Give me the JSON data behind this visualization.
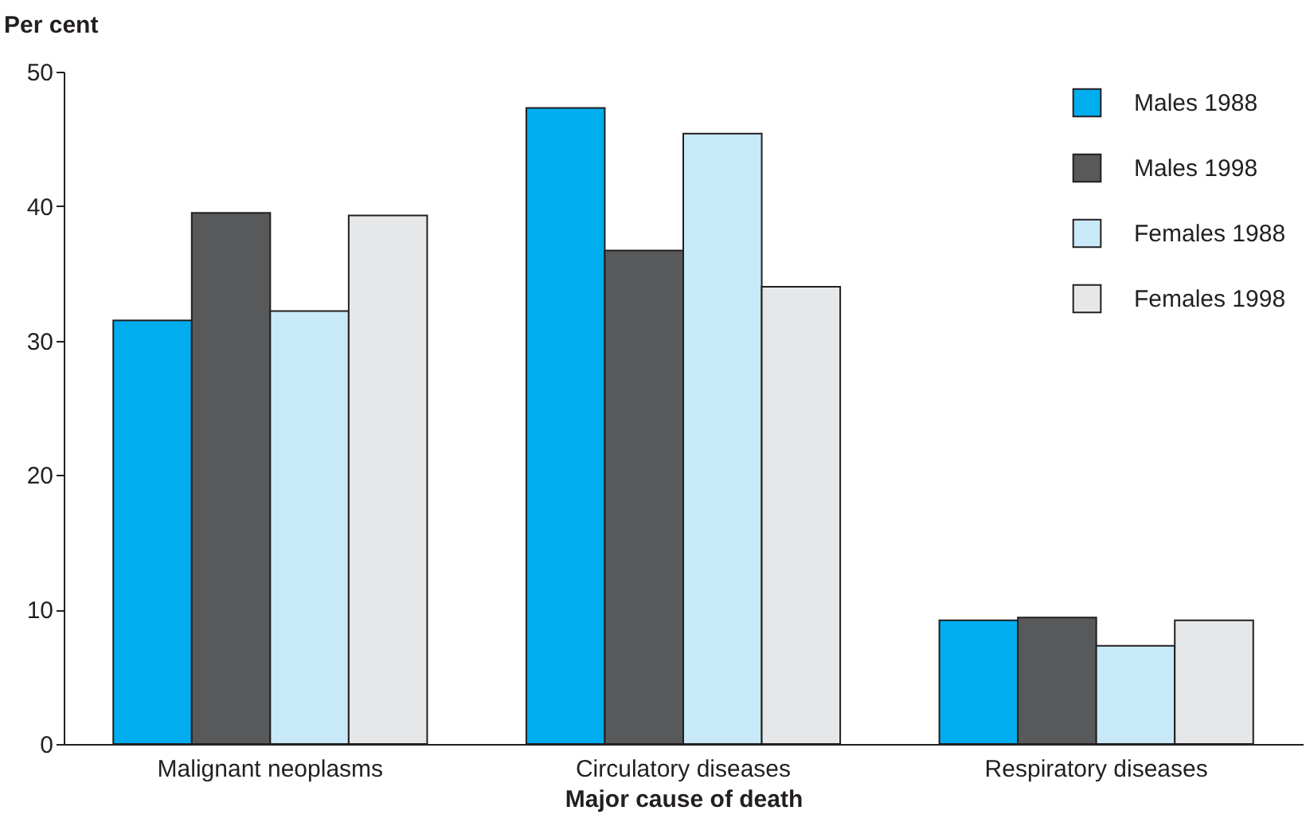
{
  "chart_data": {
    "type": "bar",
    "xlabel": "Major cause of death",
    "ylabel": "Per cent",
    "categories": [
      "Malignant neoplasms",
      "Circulatory diseases",
      "Respiratory diseases"
    ],
    "series": [
      {
        "name": "Males 1988",
        "color": "#00aeef",
        "values": [
          31.5,
          47.3,
          9.2
        ]
      },
      {
        "name": "Males 1998",
        "color": "#58595b",
        "values": [
          39.5,
          36.7,
          9.4
        ]
      },
      {
        "name": "Females 1988",
        "color": "#c8e9f8",
        "values": [
          32.2,
          45.4,
          7.3
        ]
      },
      {
        "name": "Females 1998",
        "color": "#e6e7e8",
        "values": [
          39.3,
          34.0,
          9.2
        ]
      }
    ],
    "ylim": [
      0,
      50
    ],
    "yticks": [
      0,
      10,
      20,
      30,
      40,
      50
    ],
    "grid": false,
    "legend": "top right"
  }
}
